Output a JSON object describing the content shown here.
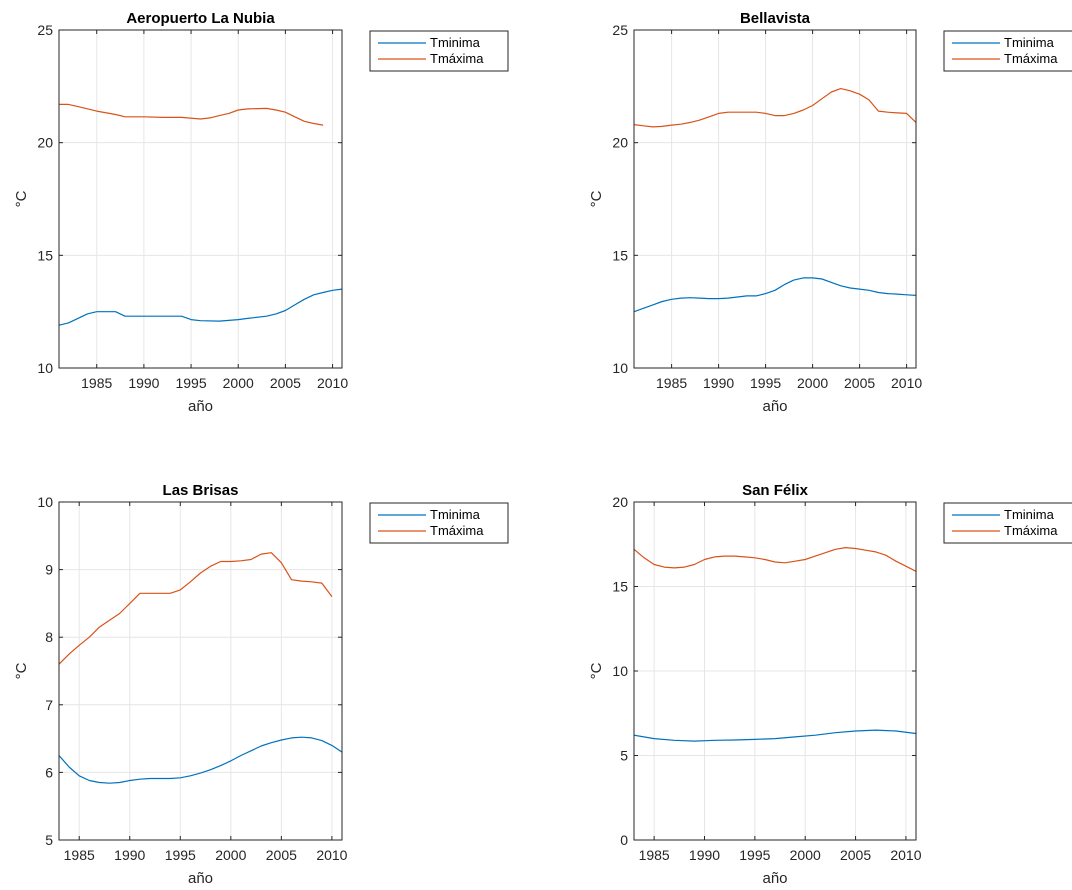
{
  "chart_data": [
    {
      "type": "line",
      "title": "Aeropuerto La Nubia",
      "xlabel": "año",
      "ylabel": "°C",
      "xlim": [
        1981,
        2011
      ],
      "ylim": [
        10,
        25
      ],
      "xticks": [
        1985,
        1990,
        1995,
        2000,
        2005,
        2010
      ],
      "yticks": [
        10,
        15,
        20,
        25
      ],
      "grid": true,
      "legend_position": "outside-top-right",
      "series": [
        {
          "name": "Tminima",
          "color": "#0072BD",
          "x": [
            1981,
            1982,
            1983,
            1984,
            1985,
            1986,
            1987,
            1988,
            1990,
            1992,
            1994,
            1995,
            1996,
            1998,
            2000,
            2001,
            2003,
            2004,
            2005,
            2006,
            2007,
            2008,
            2009,
            2010,
            2011
          ],
          "y": [
            11.9,
            12.0,
            12.2,
            12.4,
            12.5,
            12.5,
            12.5,
            12.3,
            12.3,
            12.3,
            12.3,
            12.15,
            12.1,
            12.08,
            12.15,
            12.2,
            12.3,
            12.4,
            12.55,
            12.8,
            13.05,
            13.25,
            13.35,
            13.45,
            13.5
          ]
        },
        {
          "name": "Tmáxima",
          "color": "#D95319",
          "x": [
            1981,
            1982,
            1983,
            1985,
            1987,
            1988,
            1990,
            1992,
            1994,
            1996,
            1997,
            1998,
            1999,
            2000,
            2001,
            2003,
            2004,
            2005,
            2006,
            2007,
            2008,
            2009
          ],
          "y": [
            21.7,
            21.7,
            21.6,
            21.4,
            21.25,
            21.15,
            21.15,
            21.12,
            21.12,
            21.05,
            21.1,
            21.2,
            21.3,
            21.45,
            21.5,
            21.52,
            21.45,
            21.35,
            21.15,
            20.95,
            20.85,
            20.78
          ]
        }
      ]
    },
    {
      "type": "line",
      "title": "Bellavista",
      "xlabel": "año",
      "ylabel": "°C",
      "xlim": [
        1981,
        2011
      ],
      "ylim": [
        10,
        25
      ],
      "xticks": [
        1985,
        1990,
        1995,
        2000,
        2005,
        2010
      ],
      "yticks": [
        10,
        15,
        20,
        25
      ],
      "grid": true,
      "legend_position": "outside-top-right",
      "series": [
        {
          "name": "Tminima",
          "color": "#0072BD",
          "x": [
            1981,
            1982,
            1983,
            1984,
            1985,
            1986,
            1987,
            1988,
            1989,
            1990,
            1991,
            1992,
            1993,
            1994,
            1995,
            1996,
            1997,
            1998,
            1999,
            2000,
            2001,
            2002,
            2003,
            2004,
            2005,
            2006,
            2007,
            2008,
            2009,
            2010,
            2011
          ],
          "y": [
            12.5,
            12.65,
            12.8,
            12.95,
            13.05,
            13.1,
            13.12,
            13.1,
            13.08,
            13.08,
            13.1,
            13.15,
            13.2,
            13.2,
            13.3,
            13.45,
            13.7,
            13.9,
            14.0,
            14.0,
            13.95,
            13.8,
            13.65,
            13.55,
            13.5,
            13.45,
            13.35,
            13.3,
            13.28,
            13.25,
            13.22
          ]
        },
        {
          "name": "Tmáxima",
          "color": "#D95319",
          "x": [
            1981,
            1982,
            1983,
            1984,
            1985,
            1986,
            1987,
            1988,
            1989,
            1990,
            1991,
            1992,
            1993,
            1994,
            1995,
            1996,
            1997,
            1998,
            1999,
            2000,
            2001,
            2002,
            2003,
            2004,
            2005,
            2006,
            2007,
            2008,
            2009,
            2010,
            2011
          ],
          "y": [
            20.8,
            20.75,
            20.7,
            20.72,
            20.78,
            20.82,
            20.9,
            21.0,
            21.15,
            21.3,
            21.35,
            21.35,
            21.35,
            21.35,
            21.3,
            21.2,
            21.2,
            21.3,
            21.45,
            21.65,
            21.95,
            22.25,
            22.4,
            22.3,
            22.15,
            21.9,
            21.4,
            21.35,
            21.32,
            21.3,
            20.9
          ]
        }
      ]
    },
    {
      "type": "line",
      "title": "Las Brisas",
      "xlabel": "año",
      "ylabel": "°C",
      "xlim": [
        1983,
        2011
      ],
      "ylim": [
        5,
        10
      ],
      "xticks": [
        1985,
        1990,
        1995,
        2000,
        2005,
        2010
      ],
      "yticks": [
        5,
        6,
        7,
        8,
        9,
        10
      ],
      "grid": true,
      "legend_position": "outside-top-right",
      "series": [
        {
          "name": "Tminima",
          "color": "#0072BD",
          "x": [
            1983,
            1984,
            1985,
            1986,
            1987,
            1988,
            1989,
            1990,
            1991,
            1992,
            1993,
            1994,
            1995,
            1996,
            1997,
            1998,
            1999,
            2000,
            2001,
            2002,
            2003,
            2004,
            2005,
            2006,
            2007,
            2008,
            2009,
            2010,
            2011
          ],
          "y": [
            6.25,
            6.08,
            5.95,
            5.88,
            5.85,
            5.84,
            5.85,
            5.88,
            5.9,
            5.91,
            5.91,
            5.91,
            5.92,
            5.95,
            5.99,
            6.04,
            6.1,
            6.17,
            6.25,
            6.32,
            6.39,
            6.44,
            6.48,
            6.51,
            6.52,
            6.51,
            6.47,
            6.4,
            6.3
          ]
        },
        {
          "name": "Tmáxima",
          "color": "#D95319",
          "x": [
            1983,
            1984,
            1985,
            1986,
            1987,
            1988,
            1989,
            1990,
            1991,
            1992,
            1993,
            1994,
            1995,
            1996,
            1997,
            1998,
            1999,
            2000,
            2001,
            2002,
            2003,
            2004,
            2005,
            2006,
            2007,
            2008,
            2009,
            2010
          ],
          "y": [
            7.6,
            7.75,
            7.88,
            8.0,
            8.15,
            8.25,
            8.35,
            8.5,
            8.65,
            8.65,
            8.65,
            8.65,
            8.7,
            8.82,
            8.95,
            9.05,
            9.12,
            9.12,
            9.13,
            9.15,
            9.23,
            9.25,
            9.1,
            8.85,
            8.83,
            8.82,
            8.8,
            8.6
          ]
        }
      ]
    },
    {
      "type": "line",
      "title": "San Félix",
      "xlabel": "año",
      "ylabel": "°C",
      "xlim": [
        1983,
        2011
      ],
      "ylim": [
        0,
        20
      ],
      "xticks": [
        1985,
        1990,
        1995,
        2000,
        2005,
        2010
      ],
      "yticks": [
        0,
        5,
        10,
        15,
        20
      ],
      "grid": true,
      "legend_position": "outside-top-right",
      "series": [
        {
          "name": "Tminima",
          "color": "#0072BD",
          "x": [
            1983,
            1985,
            1987,
            1989,
            1991,
            1993,
            1995,
            1997,
            1999,
            2001,
            2003,
            2005,
            2007,
            2009,
            2011
          ],
          "y": [
            6.2,
            6.0,
            5.9,
            5.85,
            5.9,
            5.92,
            5.95,
            6.0,
            6.1,
            6.2,
            6.35,
            6.45,
            6.5,
            6.45,
            6.3
          ]
        },
        {
          "name": "Tmáxima",
          "color": "#D95319",
          "x": [
            1983,
            1984,
            1985,
            1986,
            1987,
            1988,
            1989,
            1990,
            1991,
            1992,
            1993,
            1994,
            1995,
            1996,
            1997,
            1998,
            1999,
            2000,
            2001,
            2002,
            2003,
            2004,
            2005,
            2006,
            2007,
            2008,
            2009,
            2010,
            2011
          ],
          "y": [
            17.2,
            16.7,
            16.3,
            16.15,
            16.1,
            16.15,
            16.3,
            16.6,
            16.75,
            16.8,
            16.8,
            16.75,
            16.7,
            16.6,
            16.45,
            16.4,
            16.5,
            16.6,
            16.8,
            17.0,
            17.2,
            17.3,
            17.25,
            17.15,
            17.05,
            16.85,
            16.5,
            16.2,
            15.9
          ]
        }
      ]
    }
  ]
}
